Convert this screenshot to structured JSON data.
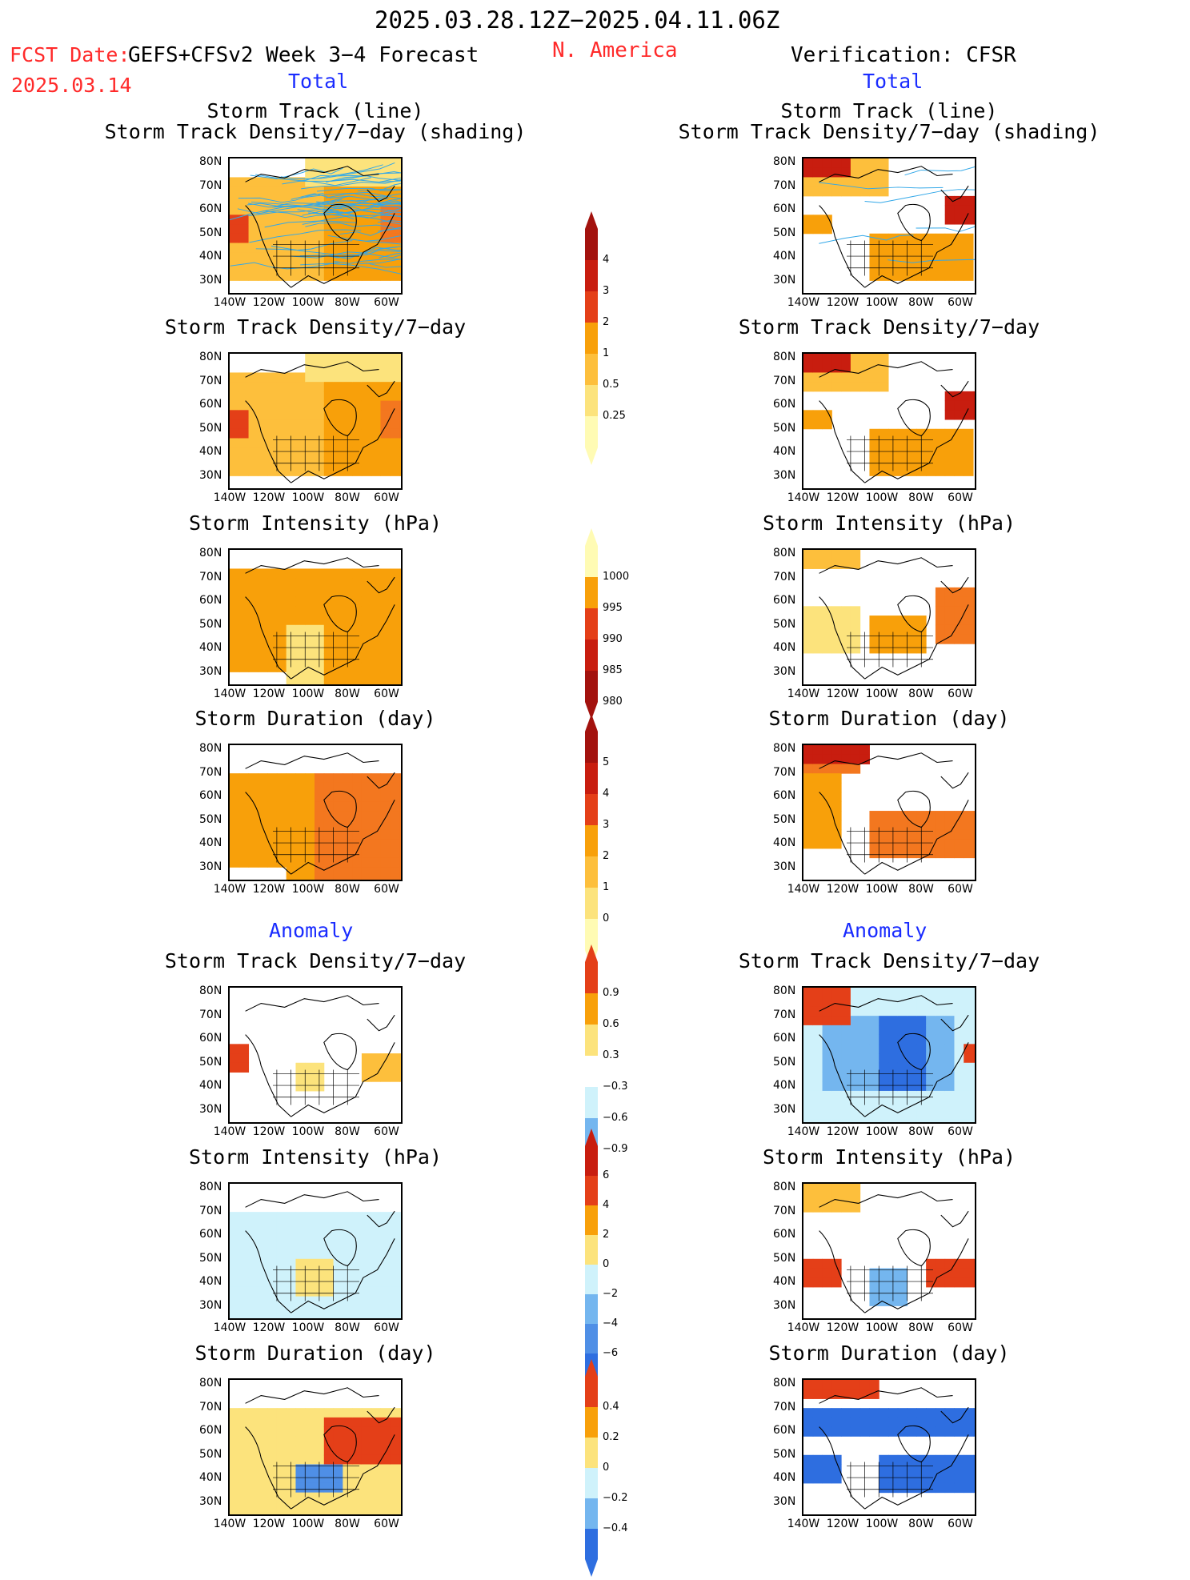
{
  "header": {
    "period": "2025.03.28.12Z−2025.04.11.06Z",
    "fcst_label": "FCST Date:",
    "model": "GEFS+CFSv2 Week 3−4 Forecast",
    "fcst_date": "2025.03.14",
    "region": "N. America",
    "verification": "Verification: CFSR"
  },
  "sections": {
    "total": "Total",
    "anomaly": "Anomaly"
  },
  "titles": {
    "track_line": "Storm Track (line)",
    "track_shading": "Storm Track Density/7−day (shading)",
    "density": "Storm Track Density/7−day",
    "intensity": "Storm Intensity (hPa)",
    "duration": "Storm Duration (day)"
  },
  "axes": {
    "lat_ticks": [
      "80N",
      "70N",
      "60N",
      "50N",
      "40N",
      "30N"
    ],
    "lon_ticks": [
      "140W",
      "120W",
      "100W",
      "80W",
      "60W"
    ]
  },
  "colors": {
    "pos": [
      "#fffbb4",
      "#fce37c",
      "#fdbf3c",
      "#f8a00a",
      "#f3771f",
      "#e43f18",
      "#c81d0f",
      "#a3120e"
    ],
    "neg": [
      "#cff2fb",
      "#a6dcf6",
      "#74b6ef",
      "#4f8fe6",
      "#2e6ee0",
      "#1c58db"
    ],
    "track": "#33a8e8",
    "title_blue": "#1a2cff",
    "header_red": "#ff2a2a"
  },
  "chart_data": [
    {
      "type": "heatmap",
      "panel": "forecast-total-track-density-with-tracks",
      "note": "storm track lines overlaid"
    },
    {
      "type": "heatmap",
      "panel": "forecast-total-density"
    },
    {
      "type": "heatmap",
      "panel": "forecast-total-intensity"
    },
    {
      "type": "heatmap",
      "panel": "forecast-total-duration"
    },
    {
      "type": "heatmap",
      "panel": "forecast-anomaly-density"
    },
    {
      "type": "heatmap",
      "panel": "forecast-anomaly-intensity"
    },
    {
      "type": "heatmap",
      "panel": "forecast-anomaly-duration"
    },
    {
      "type": "heatmap",
      "panel": "verification-total-track-density-with-tracks"
    },
    {
      "type": "heatmap",
      "panel": "verification-total-density"
    },
    {
      "type": "heatmap",
      "panel": "verification-total-intensity"
    },
    {
      "type": "heatmap",
      "panel": "verification-total-duration"
    },
    {
      "type": "heatmap",
      "panel": "verification-anomaly-density"
    },
    {
      "type": "heatmap",
      "panel": "verification-anomaly-intensity"
    },
    {
      "type": "heatmap",
      "panel": "verification-anomaly-duration"
    }
  ],
  "colorbars": {
    "density_total": [
      "4",
      "3",
      "2",
      "1",
      "0.5",
      "0.25"
    ],
    "intensity_total": [
      "1000",
      "995",
      "990",
      "985",
      "980"
    ],
    "duration_total": [
      "5",
      "4",
      "3",
      "2",
      "1",
      "0"
    ],
    "density_anom": [
      "0.9",
      "0.6",
      "0.3",
      "−0.3",
      "−0.6",
      "−0.9"
    ],
    "intensity_anom": [
      "6",
      "4",
      "2",
      "0",
      "−2",
      "−4",
      "−6"
    ],
    "duration_anom": [
      "0.4",
      "0.2",
      "0",
      "−0.2",
      "−0.4"
    ]
  }
}
